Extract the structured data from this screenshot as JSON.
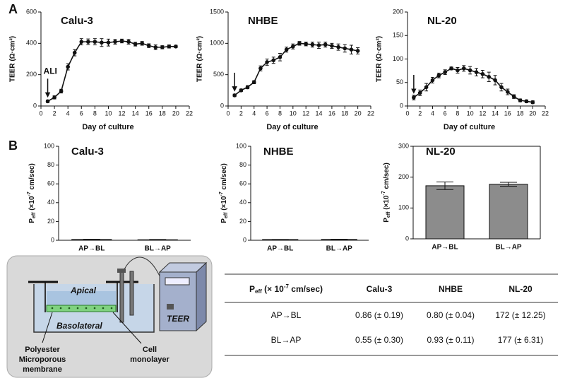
{
  "panel_labels": [
    "A",
    "B"
  ],
  "chart_data": [
    {
      "type": "line",
      "title": "Calu-3",
      "xlabel": "Day of culture",
      "ylabel": "TEER (Ω·cm²)",
      "annotation": "ALI",
      "color": "#111111",
      "x": [
        1,
        2,
        3,
        4,
        5,
        6,
        7,
        8,
        9,
        10,
        11,
        12,
        13,
        14,
        15,
        16,
        17,
        18,
        19,
        20
      ],
      "values": [
        30,
        55,
        95,
        250,
        340,
        410,
        410,
        410,
        405,
        405,
        410,
        415,
        410,
        395,
        400,
        385,
        375,
        375,
        380,
        380
      ],
      "errors": [
        8,
        10,
        12,
        20,
        20,
        20,
        18,
        20,
        25,
        22,
        15,
        12,
        15,
        12,
        12,
        12,
        15,
        10,
        10,
        8
      ],
      "xlim": [
        0,
        22
      ],
      "xticks": [
        0,
        2,
        4,
        6,
        8,
        10,
        12,
        14,
        16,
        18,
        20,
        22
      ],
      "ylim": [
        0,
        600
      ],
      "yticks": [
        0,
        200,
        400,
        600
      ]
    },
    {
      "type": "line",
      "title": "NHBE",
      "xlabel": "Day of culture",
      "ylabel": "TEER (Ω·cm²)",
      "color": "#111111",
      "x": [
        1,
        2,
        3,
        4,
        5,
        6,
        7,
        8,
        9,
        10,
        11,
        12,
        13,
        14,
        15,
        16,
        17,
        18,
        19,
        20
      ],
      "values": [
        170,
        250,
        300,
        380,
        600,
        700,
        730,
        780,
        900,
        950,
        1000,
        990,
        980,
        970,
        980,
        960,
        940,
        920,
        900,
        880
      ],
      "errors": [
        20,
        20,
        25,
        25,
        40,
        50,
        50,
        60,
        40,
        40,
        30,
        30,
        40,
        50,
        40,
        40,
        50,
        60,
        70,
        50
      ],
      "xlim": [
        0,
        22
      ],
      "xticks": [
        0,
        2,
        4,
        6,
        8,
        10,
        12,
        14,
        16,
        18,
        20,
        22
      ],
      "ylim": [
        0,
        1500
      ],
      "yticks": [
        0,
        500,
        1000,
        1500
      ]
    },
    {
      "type": "line",
      "title": "NL-20",
      "xlabel": "Day of culture",
      "ylabel": "TEER (Ω·cm²)",
      "color": "#111111",
      "x": [
        1,
        2,
        3,
        4,
        5,
        6,
        7,
        8,
        9,
        10,
        11,
        12,
        13,
        14,
        15,
        16,
        17,
        18,
        19,
        20
      ],
      "values": [
        18,
        28,
        40,
        55,
        65,
        72,
        80,
        76,
        80,
        76,
        72,
        68,
        62,
        55,
        40,
        30,
        20,
        12,
        10,
        8
      ],
      "errors": [
        5,
        6,
        8,
        6,
        5,
        5,
        3,
        6,
        6,
        8,
        8,
        8,
        10,
        10,
        8,
        6,
        4,
        3,
        3,
        3
      ],
      "xlim": [
        0,
        22
      ],
      "xticks": [
        0,
        2,
        4,
        6,
        8,
        10,
        12,
        14,
        16,
        18,
        20,
        22
      ],
      "ylim": [
        0,
        200
      ],
      "yticks": [
        0,
        50,
        100,
        150,
        200
      ]
    },
    {
      "type": "bar",
      "title": "Calu-3",
      "ylabel": [
        "P",
        "eff",
        " (×10",
        "-7",
        " cm/sec)"
      ],
      "color": "#8c8c8c",
      "categories": [
        "AP→BL",
        "BL→AP"
      ],
      "values": [
        0.86,
        0.55
      ],
      "errors": [
        0.19,
        0.3
      ],
      "ylim": [
        0,
        100
      ],
      "yticks": [
        0,
        20,
        40,
        60,
        80,
        100
      ],
      "frame": false
    },
    {
      "type": "bar",
      "title": "NHBE",
      "ylabel": [
        "P",
        "eff",
        " (×10",
        "-7",
        " cm/sec)"
      ],
      "color": "#8c8c8c",
      "categories": [
        "AP→BL",
        "BL→AP"
      ],
      "values": [
        0.8,
        0.93
      ],
      "errors": [
        0.04,
        0.11
      ],
      "ylim": [
        0,
        100
      ],
      "yticks": [
        0,
        20,
        40,
        60,
        80,
        100
      ],
      "frame": false
    },
    {
      "type": "bar",
      "title": "NL-20",
      "ylabel": [
        "P",
        "eff",
        " (×10",
        "-7",
        " cm/sec)"
      ],
      "color": "#8c8c8c",
      "categories": [
        "AP→BL",
        "BL→AP"
      ],
      "values": [
        172,
        177
      ],
      "errors": [
        12.25,
        6.31
      ],
      "ylim": [
        0,
        300
      ],
      "yticks": [
        0,
        100,
        200,
        300
      ],
      "frame": true
    }
  ],
  "diagram": {
    "apical": "Apical",
    "basolateral": "Basolateral",
    "device": "TEER",
    "membrane": [
      "Polyester",
      "Microporous",
      "membrane"
    ],
    "cells": [
      "Cell",
      "monolayer"
    ]
  },
  "table": {
    "header": [
      [
        "P",
        "eff",
        " (× 10",
        "-7",
        " cm/sec)"
      ],
      "Calu-3",
      "NHBE",
      "NL-20"
    ],
    "rows": [
      [
        "AP→BL",
        "0.86 (± 0.19)",
        "0.80 (± 0.04)",
        "172 (± 12.25)"
      ],
      [
        "BL→AP",
        "0.55 (± 0.30)",
        "0.93 (± 0.11)",
        "177 (± 6.31)"
      ]
    ]
  }
}
